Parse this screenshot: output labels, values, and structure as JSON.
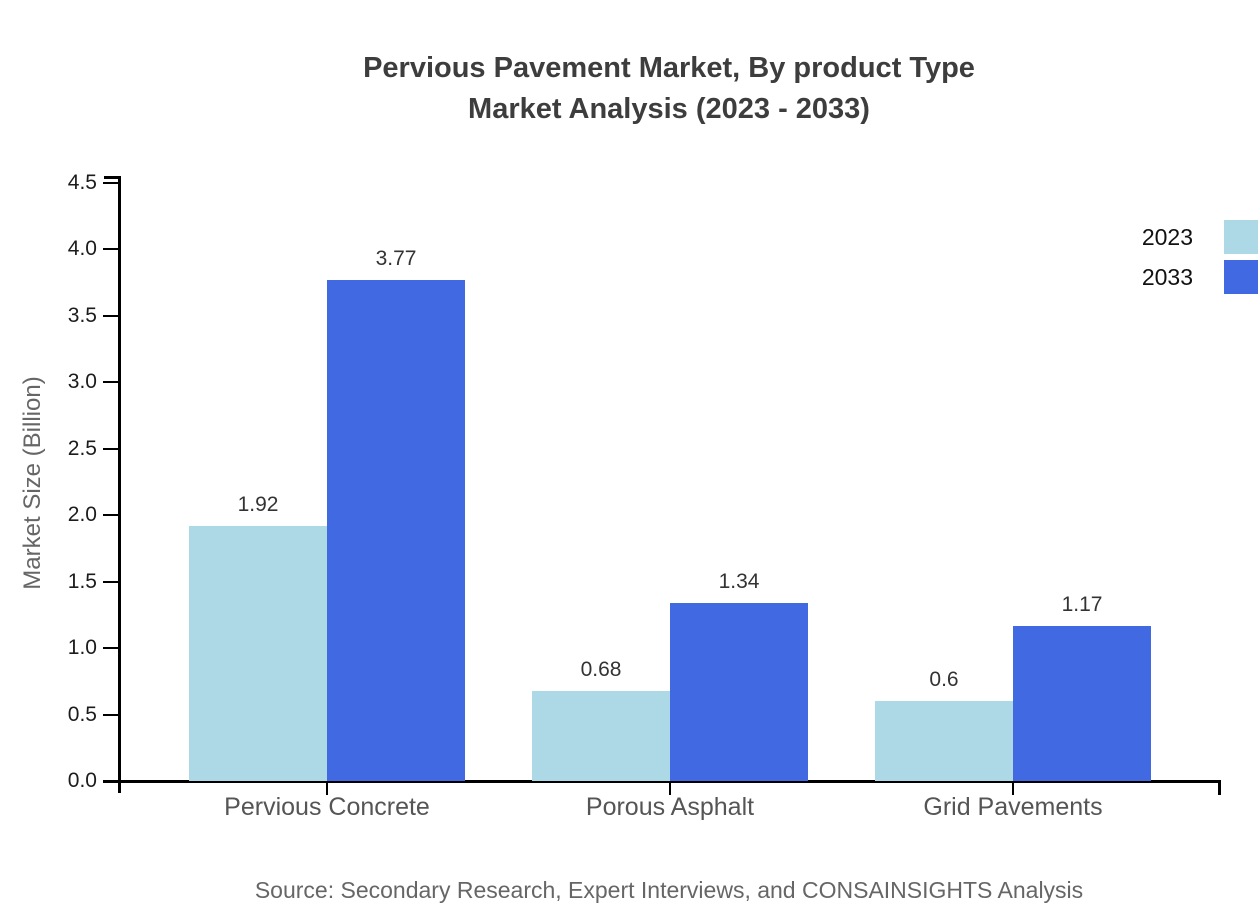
{
  "title": {
    "line1": "Pervious Pavement Market, By product Type",
    "line2": "Market Analysis (2023 - 2033)"
  },
  "source": "Source: Secondary Research, Expert Interviews, and CONSAINSIGHTS Analysis",
  "chart_data": {
    "type": "bar",
    "title": "Pervious Pavement Market, By product Type Market Analysis (2023 - 2033)",
    "categories": [
      "Pervious Concrete",
      "Porous Asphalt",
      "Grid Pavements"
    ],
    "series": [
      {
        "name": "2023",
        "color": "#ADD8E6",
        "values": [
          1.92,
          0.68,
          0.6
        ]
      },
      {
        "name": "2033",
        "color": "#4169E1",
        "values": [
          3.77,
          1.34,
          1.17
        ]
      }
    ],
    "xlabel": "",
    "ylabel": "Market Size (Billion)",
    "ylim": [
      0,
      4.5
    ],
    "ytick_step": 0.5,
    "grid": false,
    "legend_position": "top-right",
    "axis_color": "#000000"
  }
}
